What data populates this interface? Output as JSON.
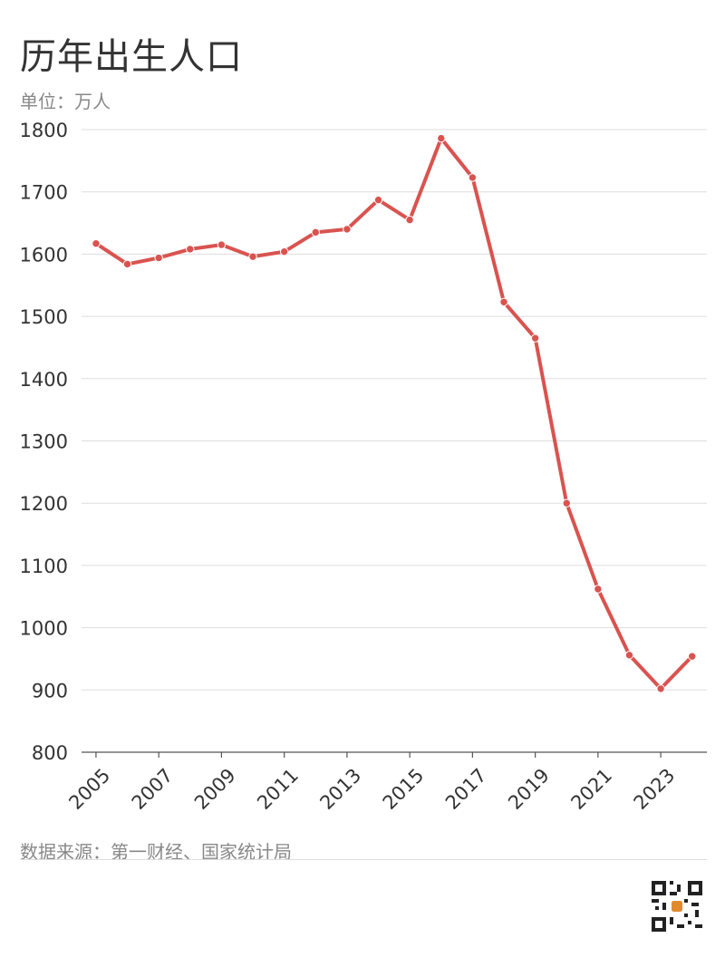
{
  "header": {
    "title": "历年出生人口",
    "unit": "单位：万人"
  },
  "footer": {
    "source": "数据来源：第一财经、国家统计局"
  },
  "colors": {
    "line": "#d9534f",
    "grid": "#dddddd",
    "axis": "#555555"
  },
  "chart_data": {
    "type": "line",
    "title": "历年出生人口",
    "ylabel": "单位：万人",
    "xlabel": "",
    "x": [
      2005,
      2006,
      2007,
      2008,
      2009,
      2010,
      2011,
      2012,
      2013,
      2014,
      2015,
      2016,
      2017,
      2018,
      2019,
      2020,
      2021,
      2022,
      2023,
      2024
    ],
    "series": [
      {
        "name": "",
        "values": [
          1617,
          1584,
          1594,
          1608,
          1615,
          1596,
          1604,
          1635,
          1640,
          1687,
          1655,
          1786,
          1723,
          1523,
          1465,
          1200,
          1062,
          956,
          902,
          954
        ]
      }
    ],
    "ylim": [
      800,
      1800
    ],
    "yticks": [
      "800",
      "900",
      "1000",
      "1100",
      "1200",
      "1300",
      "1400",
      "1500",
      "1600",
      "1700",
      "1800"
    ],
    "xticks": [
      "2005",
      "2007",
      "2009",
      "2011",
      "2013",
      "2015",
      "2017",
      "2019",
      "2021",
      "2023"
    ],
    "grid": true,
    "legend": "none"
  }
}
